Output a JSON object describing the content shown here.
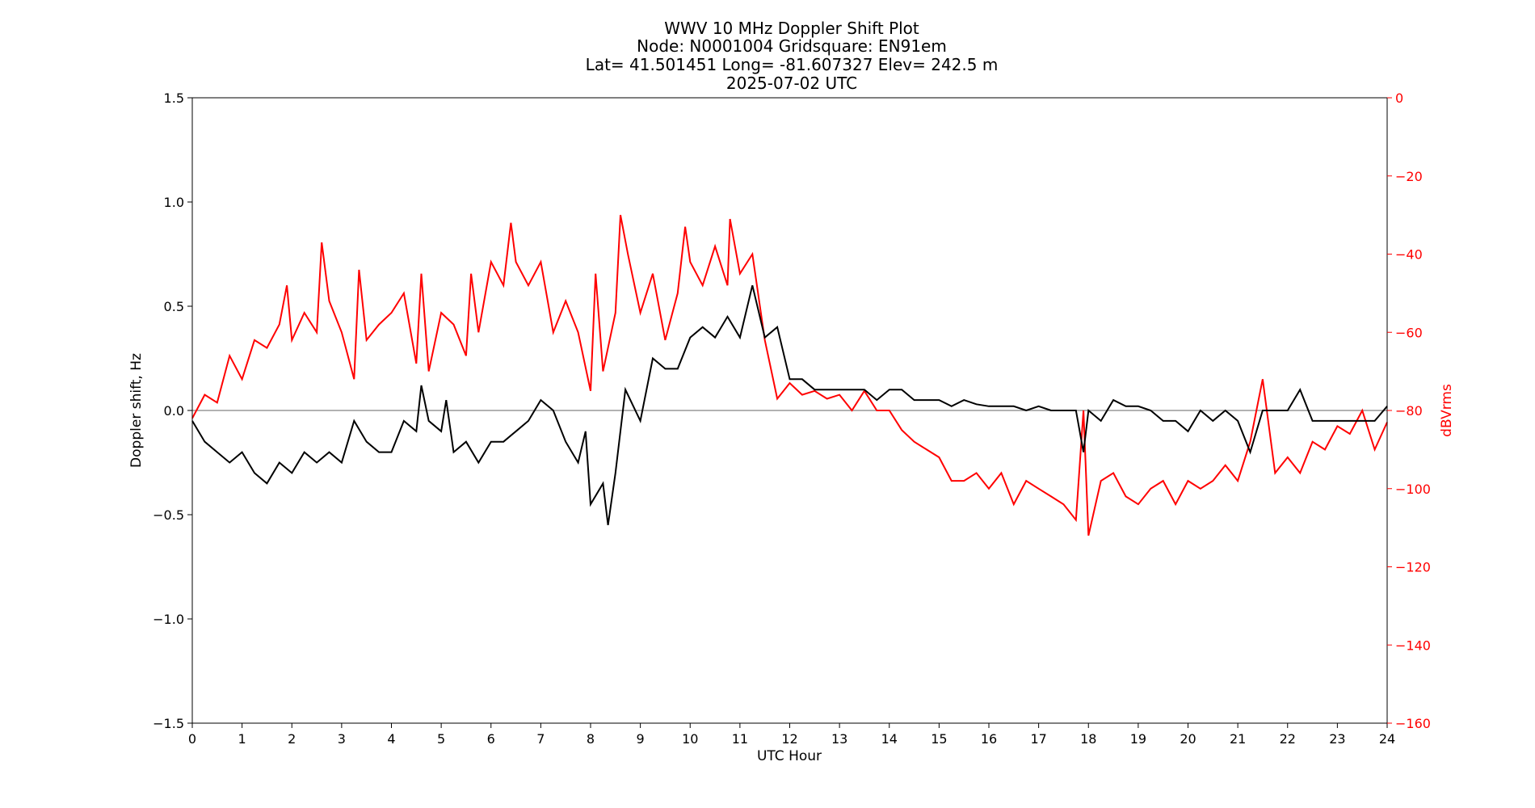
{
  "chart_data": {
    "type": "line",
    "title_lines": [
      "WWV 10 MHz Doppler Shift Plot",
      "Node:  N0001004     Gridsquare:  EN91em",
      "Lat= 41.501451    Long= -81.607327    Elev= 242.5 m",
      "2025-07-02  UTC"
    ],
    "xlabel": "UTC Hour",
    "ylabel_left": "Doppler shift, Hz",
    "ylabel_right": "dBVrms",
    "xlim": [
      0,
      24
    ],
    "ylim_left": [
      -1.5,
      1.5
    ],
    "ylim_right": [
      -160,
      0
    ],
    "x_ticks": [
      "0",
      "1",
      "2",
      "3",
      "4",
      "5",
      "6",
      "7",
      "8",
      "9",
      "10",
      "11",
      "12",
      "13",
      "14",
      "15",
      "16",
      "17",
      "18",
      "19",
      "20",
      "21",
      "22",
      "23",
      "24"
    ],
    "y_ticks_left": [
      "−1.5",
      "−1.0",
      "−0.5",
      "0.0",
      "0.5",
      "1.0",
      "1.5"
    ],
    "y_ticks_right": [
      "−160",
      "−140",
      "−120",
      "−100",
      "−80",
      "−60",
      "−40",
      "−20",
      "0"
    ],
    "grid": false,
    "zero_line": true,
    "colors": {
      "doppler": "#000000",
      "power": "#ff0000",
      "zero_line": "#999999"
    },
    "series": [
      {
        "axis": "left",
        "color": "#000000",
        "x": [
          0,
          0.25,
          0.5,
          0.75,
          1,
          1.25,
          1.5,
          1.75,
          2,
          2.25,
          2.5,
          2.75,
          3,
          3.25,
          3.5,
          3.75,
          4,
          4.25,
          4.5,
          4.6,
          4.75,
          5,
          5.1,
          5.25,
          5.5,
          5.75,
          6,
          6.25,
          6.5,
          6.75,
          7,
          7.25,
          7.5,
          7.75,
          7.9,
          8,
          8.25,
          8.35,
          8.5,
          8.7,
          9,
          9.25,
          9.5,
          9.75,
          10,
          10.25,
          10.5,
          10.75,
          11,
          11.25,
          11.5,
          11.75,
          12,
          12.25,
          12.5,
          12.75,
          13,
          13.25,
          13.5,
          13.75,
          14,
          14.25,
          14.5,
          14.75,
          15,
          15.25,
          15.5,
          15.75,
          16,
          16.25,
          16.5,
          16.75,
          17,
          17.25,
          17.5,
          17.75,
          17.9,
          18,
          18.25,
          18.5,
          18.75,
          19,
          19.25,
          19.5,
          19.75,
          20,
          20.25,
          20.5,
          20.75,
          21,
          21.25,
          21.5,
          21.75,
          22,
          22.25,
          22.5,
          22.75,
          23,
          23.25,
          23.5,
          23.75,
          24
        ],
        "y": [
          -0.05,
          -0.15,
          -0.2,
          -0.25,
          -0.2,
          -0.3,
          -0.35,
          -0.25,
          -0.3,
          -0.2,
          -0.25,
          -0.2,
          -0.25,
          -0.05,
          -0.15,
          -0.2,
          -0.2,
          -0.05,
          -0.1,
          0.12,
          -0.05,
          -0.1,
          0.05,
          -0.2,
          -0.15,
          -0.25,
          -0.15,
          -0.15,
          -0.1,
          -0.05,
          0.05,
          0.0,
          -0.15,
          -0.25,
          -0.1,
          -0.45,
          -0.35,
          -0.55,
          -0.3,
          0.1,
          -0.05,
          0.25,
          0.2,
          0.2,
          0.35,
          0.4,
          0.35,
          0.45,
          0.35,
          0.6,
          0.35,
          0.4,
          0.15,
          0.15,
          0.1,
          0.1,
          0.1,
          0.1,
          0.1,
          0.05,
          0.1,
          0.1,
          0.05,
          0.05,
          0.05,
          0.02,
          0.05,
          0.03,
          0.02,
          0.02,
          0.02,
          0.0,
          0.02,
          0.0,
          0.0,
          0.0,
          -0.2,
          0.0,
          -0.05,
          0.05,
          0.02,
          0.02,
          0.0,
          -0.05,
          -0.05,
          -0.1,
          0.0,
          -0.05,
          0.0,
          -0.05,
          -0.2,
          0.0,
          0.0,
          0.0,
          0.1,
          -0.05,
          -0.05,
          -0.05,
          -0.05,
          -0.05,
          -0.05,
          0.02
        ]
      },
      {
        "axis": "right",
        "color": "#ff0000",
        "x": [
          0,
          0.25,
          0.5,
          0.75,
          1,
          1.25,
          1.5,
          1.75,
          1.9,
          2,
          2.25,
          2.5,
          2.6,
          2.75,
          3,
          3.25,
          3.35,
          3.5,
          3.75,
          4,
          4.25,
          4.5,
          4.6,
          4.75,
          5,
          5.25,
          5.5,
          5.6,
          5.75,
          6,
          6.25,
          6.4,
          6.5,
          6.75,
          7,
          7.25,
          7.5,
          7.75,
          8,
          8.1,
          8.25,
          8.5,
          8.6,
          8.75,
          9,
          9.25,
          9.5,
          9.75,
          9.9,
          10,
          10.25,
          10.5,
          10.75,
          10.8,
          11,
          11.25,
          11.5,
          11.75,
          12,
          12.25,
          12.5,
          12.75,
          13,
          13.25,
          13.5,
          13.75,
          14,
          14.25,
          14.5,
          14.75,
          15,
          15.25,
          15.5,
          15.75,
          16,
          16.25,
          16.5,
          16.75,
          17,
          17.25,
          17.5,
          17.75,
          17.9,
          18,
          18.25,
          18.5,
          18.75,
          19,
          19.25,
          19.5,
          19.75,
          20,
          20.25,
          20.5,
          20.75,
          21,
          21.25,
          21.5,
          21.75,
          22,
          22.25,
          22.5,
          22.75,
          23,
          23.25,
          23.5,
          23.75,
          24
        ],
        "y": [
          -82,
          -76,
          -78,
          -66,
          -72,
          -62,
          -64,
          -58,
          -48,
          -62,
          -55,
          -60,
          -37,
          -52,
          -60,
          -72,
          -44,
          -62,
          -58,
          -55,
          -50,
          -68,
          -45,
          -70,
          -55,
          -58,
          -66,
          -45,
          -60,
          -42,
          -48,
          -32,
          -42,
          -48,
          -42,
          -60,
          -52,
          -60,
          -75,
          -45,
          -70,
          -55,
          -30,
          -40,
          -55,
          -45,
          -62,
          -50,
          -33,
          -42,
          -48,
          -38,
          -48,
          -31,
          -45,
          -40,
          -62,
          -77,
          -73,
          -76,
          -75,
          -77,
          -76,
          -80,
          -75,
          -80,
          -80,
          -85,
          -88,
          -90,
          -92,
          -98,
          -98,
          -96,
          -100,
          -96,
          -104,
          -98,
          -100,
          -102,
          -104,
          -108,
          -80,
          -112,
          -98,
          -96,
          -102,
          -104,
          -100,
          -98,
          -104,
          -98,
          -100,
          -98,
          -94,
          -98,
          -88,
          -72,
          -96,
          -92,
          -96,
          -88,
          -90,
          -84,
          -86,
          -80,
          -90,
          -83
        ]
      }
    ]
  }
}
